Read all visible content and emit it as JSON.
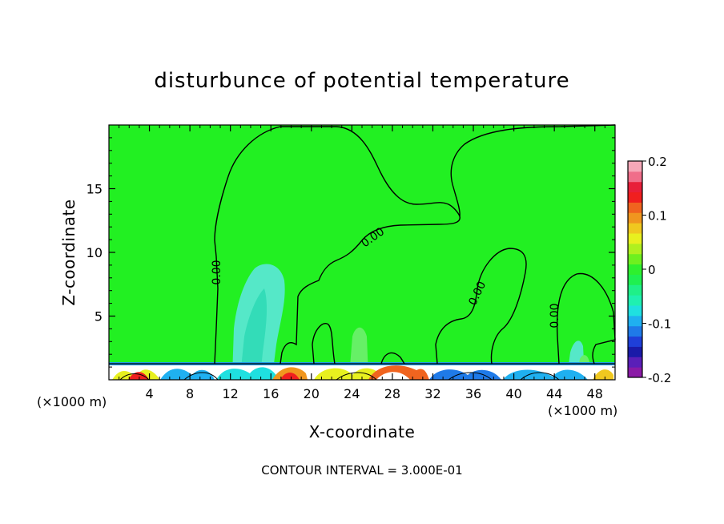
{
  "chart_data": {
    "type": "heatmap",
    "title": "disturbunce of potential temperature",
    "xlabel": "X-coordinate",
    "ylabel": "Z-coordinate",
    "x_unit": "(×1000 m)",
    "xlim": [
      0,
      50
    ],
    "ylim": [
      0,
      20
    ],
    "xticks": [
      4,
      8,
      12,
      16,
      20,
      24,
      28,
      32,
      36,
      40,
      44,
      48
    ],
    "yticks": [
      5,
      10,
      15
    ],
    "colorbar": {
      "range": [
        -0.2,
        0.2
      ],
      "labels": [
        "0.2",
        "0.1",
        "0",
        "-0.1",
        "-0.2"
      ],
      "colors": [
        "#8a1aa6",
        "#5a1fb8",
        "#1a1aa8",
        "#1f3fd8",
        "#1f7ae8",
        "#1fb0f0",
        "#1fe0e0",
        "#1ff0b0",
        "#1ff088",
        "#1ff050",
        "#2ef02e",
        "#6ef01f",
        "#b0f01f",
        "#e8f01f",
        "#f0c81f",
        "#f0961f",
        "#f0641f",
        "#f01f1f",
        "#e81f3a",
        "#f06e8a",
        "#f6a8b8"
      ]
    },
    "contour_label": "0.00",
    "contour_interval_text": "CONTOUR INTERVAL = 3.000E-01",
    "background_value": 0
  },
  "colors": {
    "field": "#22f022",
    "cyan": "#55e8c8",
    "light_green": "#66f066"
  }
}
